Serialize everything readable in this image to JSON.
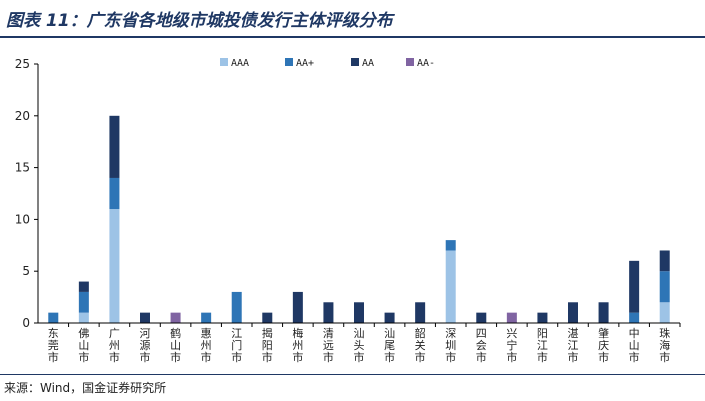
{
  "figure": {
    "title": "图表 11：广东省各地级市城投债发行主体评级分布",
    "source": "来源：Wind，国金证券研究所"
  },
  "colors": {
    "AAA": "#9dc3e6",
    "AA+": "#2e75b6",
    "AA": "#1f3864",
    "AA-": "#8064a2",
    "axis": "#000000",
    "title": "#1f3864"
  },
  "chart_data": {
    "type": "bar",
    "stacked": true,
    "categories": [
      "东莞市",
      "佛山市",
      "广州市",
      "河源市",
      "鹤山市",
      "惠州市",
      "江门市",
      "揭阳市",
      "梅州市",
      "清远市",
      "汕头市",
      "汕尾市",
      "韶关市",
      "深圳市",
      "四会市",
      "兴宁市",
      "阳江市",
      "湛江市",
      "肇庆市",
      "中山市",
      "珠海市"
    ],
    "series": [
      {
        "name": "AAA",
        "values": [
          0,
          1,
          11,
          0,
          0,
          0,
          0,
          0,
          0,
          0,
          0,
          0,
          0,
          7,
          0,
          0,
          0,
          0,
          0,
          0,
          2
        ]
      },
      {
        "name": "AA+",
        "values": [
          1,
          2,
          3,
          0,
          0,
          1,
          3,
          0,
          0,
          0,
          0,
          0,
          0,
          1,
          0,
          0,
          0,
          0,
          0,
          1,
          3
        ]
      },
      {
        "name": "AA",
        "values": [
          0,
          1,
          6,
          1,
          0,
          0,
          0,
          1,
          3,
          2,
          2,
          1,
          2,
          0,
          1,
          0,
          1,
          2,
          2,
          5,
          2
        ]
      },
      {
        "name": "AA-",
        "values": [
          0,
          0,
          0,
          0,
          1,
          0,
          0,
          0,
          0,
          0,
          0,
          0,
          0,
          0,
          0,
          1,
          0,
          0,
          0,
          0,
          0
        ]
      }
    ],
    "ylim": [
      0,
      25
    ],
    "yticks": [
      0,
      5,
      10,
      15,
      20,
      25
    ],
    "legend_position": "top-right",
    "grid": false
  }
}
